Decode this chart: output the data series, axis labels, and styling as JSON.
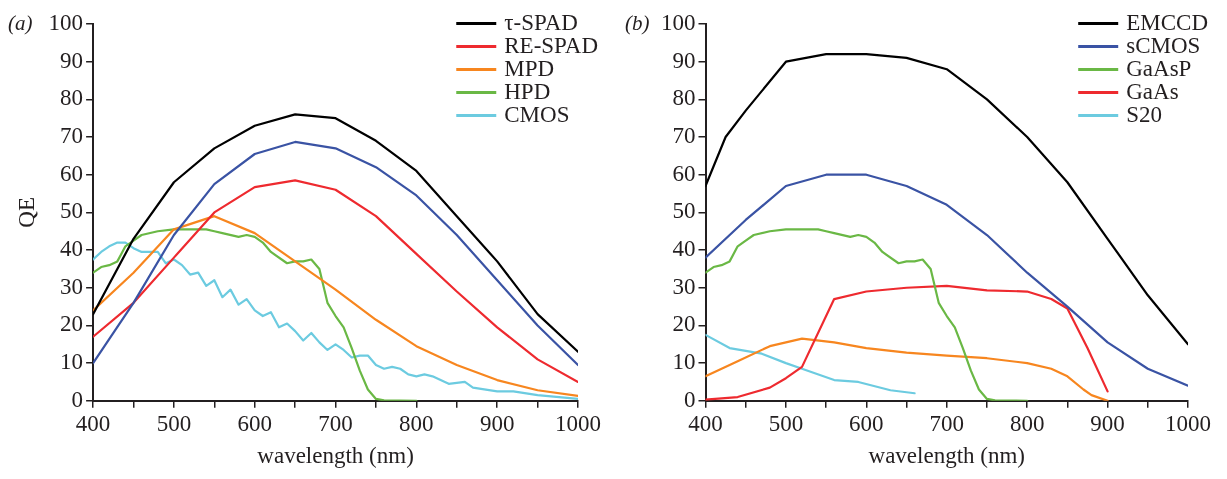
{
  "chart_data": [
    {
      "type": "line",
      "title": "(a)",
      "xlabel": "wavelength (nm)",
      "ylabel": "QE",
      "legend": "top right",
      "marker": "none",
      "xlim": [
        400,
        1000
      ],
      "ylim": [
        0,
        100
      ],
      "xticks": [
        400,
        {
          "value": 450,
          "label": null
        },
        500,
        {
          "value": 550,
          "label": null
        },
        600,
        {
          "value": 650,
          "label": null
        },
        700,
        {
          "value": 750,
          "label": null
        },
        800,
        {
          "value": 850,
          "label": null
        },
        900,
        {
          "value": 950,
          "label": null
        },
        1000
      ],
      "yticks": [
        0,
        10,
        20,
        30,
        40,
        50,
        60,
        70,
        80,
        90,
        100
      ],
      "series": [
        {
          "name": "τ-SPAD",
          "color": "#000000",
          "x": [
            400,
            450,
            500,
            550,
            600,
            650,
            700,
            750,
            800,
            850,
            900,
            950,
            1000
          ],
          "values": [
            23,
            43,
            58,
            67,
            73,
            76,
            75,
            69,
            61,
            49,
            37,
            23,
            13
          ]
        },
        {
          "color": "#3a53a4",
          "x": [
            400,
            450,
            500,
            550,
            600,
            650,
            700,
            750,
            800,
            850,
            900,
            950,
            1000
          ],
          "values": [
            10,
            26,
            44,
            57.5,
            65.5,
            68.7,
            67,
            62,
            54.5,
            44,
            32,
            20,
            9.5
          ]
        },
        {
          "name": "RE-SPAD",
          "color": "#ee2a2f",
          "x": [
            400,
            450,
            500,
            550,
            600,
            650,
            700,
            750,
            800,
            850,
            900,
            950,
            1000
          ],
          "values": [
            17,
            26,
            38,
            50,
            56.7,
            58.5,
            56,
            49,
            39,
            29,
            19.5,
            11,
            5
          ]
        },
        {
          "name": "MPD",
          "color": "#f7861f",
          "x": [
            400,
            450,
            500,
            550,
            600,
            650,
            700,
            750,
            800,
            850,
            900,
            950,
            1000
          ],
          "values": [
            24,
            34,
            45.5,
            49,
            44.5,
            37,
            29.5,
            21.5,
            14.5,
            9.5,
            5.5,
            2.8,
            1.3
          ]
        },
        {
          "name": "HPD",
          "color": "#6ab845",
          "x": [
            400,
            410,
            420,
            430,
            440,
            450,
            460,
            480,
            500,
            520,
            540,
            550,
            560,
            580,
            590,
            600,
            610,
            620,
            640,
            650,
            660,
            670,
            680,
            690,
            700,
            710,
            720,
            730,
            740,
            750,
            760,
            800
          ],
          "values": [
            34,
            35.5,
            36,
            37,
            41,
            42.5,
            44,
            45,
            45.5,
            45.5,
            45.5,
            45,
            44.5,
            43.5,
            44,
            43.5,
            42,
            39.5,
            36.5,
            37,
            37,
            37.5,
            35,
            26,
            22.5,
            19.5,
            14,
            8,
            3,
            0.5,
            0.1,
            0
          ]
        },
        {
          "name": "CMOS",
          "color": "#6ccbe0",
          "x": [
            400,
            410,
            420,
            430,
            440,
            450,
            460,
            470,
            480,
            490,
            500,
            510,
            520,
            530,
            540,
            550,
            560,
            570,
            580,
            590,
            600,
            610,
            620,
            630,
            640,
            650,
            660,
            670,
            680,
            690,
            700,
            710,
            720,
            730,
            740,
            750,
            760,
            770,
            780,
            790,
            800,
            810,
            820,
            840,
            860,
            870,
            900,
            920,
            950,
            1000
          ],
          "values": [
            37.5,
            39.5,
            41,
            42,
            42,
            40.5,
            39.5,
            39.5,
            39.5,
            36.5,
            37.5,
            36,
            33.5,
            34,
            30.5,
            32,
            27.5,
            29.5,
            25.5,
            27,
            24,
            22.5,
            23.5,
            19.5,
            20.5,
            18.5,
            16,
            18,
            15.5,
            13.5,
            15,
            13.5,
            11.5,
            12,
            12,
            9.5,
            8.5,
            9,
            8.5,
            7,
            6.5,
            7,
            6.5,
            4.5,
            5,
            3.5,
            2.5,
            2.5,
            1.5,
            0.5
          ]
        }
      ]
    },
    {
      "type": "line",
      "title": "(b)",
      "xlabel": "wavelength (nm)",
      "legend": "top right",
      "marker": "none",
      "xlim": [
        400,
        1000
      ],
      "ylim": [
        0,
        100
      ],
      "xticks": [
        400,
        {
          "value": 450,
          "label": null
        },
        500,
        {
          "value": 550,
          "label": null
        },
        600,
        {
          "value": 650,
          "label": null
        },
        700,
        {
          "value": 750,
          "label": null
        },
        800,
        {
          "value": 850,
          "label": null
        },
        900,
        {
          "value": 950,
          "label": null
        },
        1000
      ],
      "yticks": [
        0,
        10,
        20,
        30,
        40,
        50,
        60,
        70,
        80,
        90,
        100
      ],
      "series": [
        {
          "name": "EMCCD",
          "color": "#000000",
          "x": [
            400,
            425,
            450,
            500,
            550,
            600,
            650,
            700,
            750,
            800,
            850,
            900,
            950,
            1000
          ],
          "values": [
            57,
            70,
            77,
            90,
            92,
            92,
            91,
            88,
            80,
            70,
            58,
            43,
            28,
            15
          ]
        },
        {
          "name": "sCMOS",
          "color": "#3a53a4",
          "x": [
            400,
            450,
            500,
            550,
            600,
            650,
            700,
            750,
            800,
            850,
            900,
            950,
            1000
          ],
          "values": [
            38,
            48,
            57,
            60,
            60,
            57,
            52,
            44,
            34,
            25,
            15.5,
            8.5,
            4
          ]
        },
        {
          "name": "GaAsP",
          "color": "#6ab845",
          "x": [
            400,
            410,
            420,
            430,
            440,
            450,
            460,
            480,
            500,
            520,
            540,
            550,
            560,
            580,
            590,
            600,
            610,
            620,
            640,
            650,
            660,
            670,
            680,
            690,
            700,
            710,
            720,
            730,
            740,
            750,
            760,
            800
          ],
          "values": [
            34,
            35.5,
            36,
            37,
            41,
            42.5,
            44,
            45,
            45.5,
            45.5,
            45.5,
            45,
            44.5,
            43.5,
            44,
            43.5,
            42,
            39.5,
            36.5,
            37,
            37,
            37.5,
            35,
            26,
            22.5,
            19.5,
            14,
            8,
            3,
            0.5,
            0.1,
            0
          ]
        },
        {
          "name": "GaAs",
          "color": "#ee2a2f",
          "x": [
            400,
            440,
            480,
            500,
            520,
            560,
            600,
            650,
            700,
            750,
            800,
            830,
            850,
            875,
            900
          ],
          "values": [
            0.3,
            1,
            3.5,
            6,
            9,
            27,
            29,
            30,
            30.5,
            29.3,
            29,
            27,
            24.5,
            14,
            2.5
          ]
        },
        {
          "color": "#f7861f",
          "x": [
            400,
            440,
            480,
            520,
            560,
            600,
            650,
            700,
            750,
            800,
            830,
            850,
            870,
            880,
            900
          ],
          "values": [
            6.5,
            10.5,
            14.5,
            16.5,
            15.5,
            14,
            12.8,
            12,
            11.3,
            10,
            8.5,
            6.5,
            3,
            1.5,
            0
          ]
        },
        {
          "name": "S20",
          "color": "#6ccbe0",
          "x": [
            400,
            430,
            470,
            500,
            520,
            560,
            590,
            630,
            660
          ],
          "values": [
            17.5,
            14,
            12.5,
            10,
            8.5,
            5.5,
            5,
            2.8,
            2
          ]
        }
      ]
    }
  ]
}
